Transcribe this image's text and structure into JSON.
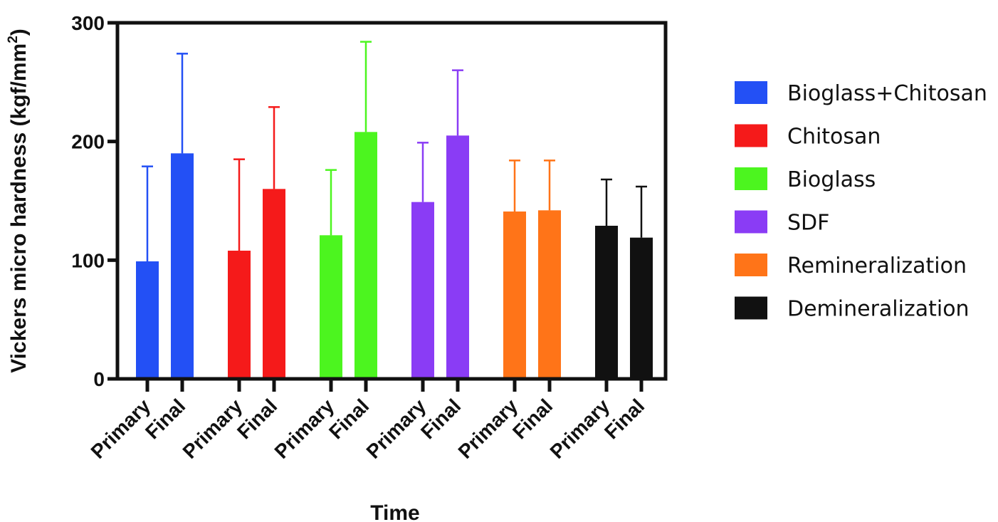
{
  "chart_data": {
    "type": "bar",
    "xlabel": "Time",
    "ylabel_main": "Vickers micro hardness (kgf/mm",
    "ylabel_sup": "2",
    "ylabel_close": ")",
    "ylim": [
      0,
      300
    ],
    "yticks": [
      0,
      100,
      200,
      300
    ],
    "ytick_labels": [
      "0",
      "100",
      "200",
      "300"
    ],
    "grid": false,
    "legend_position": "right",
    "groups": [
      {
        "name": "Bioglass+Chitosan",
        "color": "#2350f5",
        "bars": [
          {
            "category": "Primary",
            "value": 99,
            "error": 80
          },
          {
            "category": "Final",
            "value": 190,
            "error": 84
          }
        ]
      },
      {
        "name": "Chitosan",
        "color": "#f51a1a",
        "bars": [
          {
            "category": "Primary",
            "value": 108,
            "error": 77
          },
          {
            "category": "Final",
            "value": 160,
            "error": 69
          }
        ]
      },
      {
        "name": "Bioglass",
        "color": "#4cf51f",
        "bars": [
          {
            "category": "Primary",
            "value": 121,
            "error": 55
          },
          {
            "category": "Final",
            "value": 208,
            "error": 76
          }
        ]
      },
      {
        "name": "SDF",
        "color": "#8a3cf5",
        "bars": [
          {
            "category": "Primary",
            "value": 149,
            "error": 50
          },
          {
            "category": "Final",
            "value": 205,
            "error": 55
          }
        ]
      },
      {
        "name": "Remineralization",
        "color": "#ff7418",
        "bars": [
          {
            "category": "Primary",
            "value": 141,
            "error": 43
          },
          {
            "category": "Final",
            "value": 142,
            "error": 42
          }
        ]
      },
      {
        "name": "Demineralization",
        "color": "#111111",
        "bars": [
          {
            "category": "Primary",
            "value": 129,
            "error": 39
          },
          {
            "category": "Final",
            "value": 119,
            "error": 43
          }
        ]
      }
    ]
  }
}
